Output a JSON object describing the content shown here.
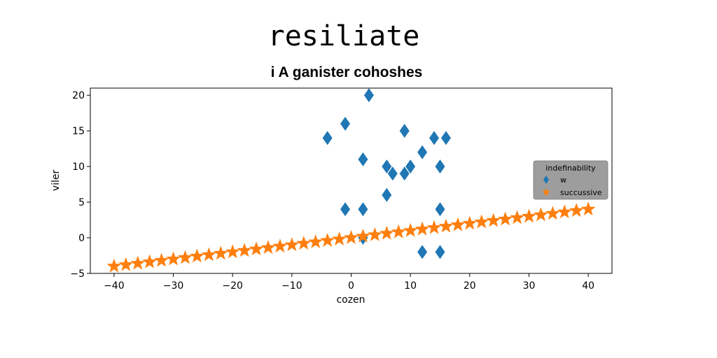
{
  "chart_data": {
    "type": "scatter",
    "suptitle": "resiliate",
    "title": "i A ganister cohoshes",
    "xlabel": "cozen",
    "ylabel": "viler",
    "xlim": [
      -44,
      44
    ],
    "ylim": [
      -5,
      21
    ],
    "xticks": [
      -40,
      -30,
      -20,
      -10,
      0,
      10,
      20,
      30,
      40
    ],
    "yticks": [
      -5,
      0,
      5,
      10,
      15,
      20
    ],
    "grid": false,
    "legend": {
      "title": "indefinability",
      "placement": "center-right"
    },
    "series": [
      {
        "name": "w",
        "marker": "diamond",
        "color": "#1f77b4",
        "points": [
          [
            -4,
            14
          ],
          [
            -1,
            16
          ],
          [
            -1,
            4
          ],
          [
            2,
            11
          ],
          [
            2,
            4
          ],
          [
            2,
            0
          ],
          [
            3,
            20
          ],
          [
            6,
            10
          ],
          [
            6,
            6
          ],
          [
            7,
            9
          ],
          [
            9,
            15
          ],
          [
            9,
            9
          ],
          [
            10,
            10
          ],
          [
            12,
            12
          ],
          [
            12,
            -2
          ],
          [
            14,
            14
          ],
          [
            15,
            10
          ],
          [
            15,
            4
          ],
          [
            15,
            -2
          ],
          [
            16,
            14
          ]
        ]
      },
      {
        "name": "succussive",
        "marker": "star",
        "color": "#ff7f0e",
        "points": [
          [
            -40,
            -4
          ],
          [
            -38,
            -3.8
          ],
          [
            -36,
            -3.6
          ],
          [
            -34,
            -3.4
          ],
          [
            -32,
            -3.2
          ],
          [
            -30,
            -3
          ],
          [
            -28,
            -2.8
          ],
          [
            -26,
            -2.6
          ],
          [
            -24,
            -2.4
          ],
          [
            -22,
            -2.2
          ],
          [
            -20,
            -2
          ],
          [
            -18,
            -1.8
          ],
          [
            -16,
            -1.6
          ],
          [
            -14,
            -1.4
          ],
          [
            -12,
            -1.2
          ],
          [
            -10,
            -1
          ],
          [
            -8,
            -0.8
          ],
          [
            -6,
            -0.6
          ],
          [
            -4,
            -0.4
          ],
          [
            -2,
            -0.2
          ],
          [
            0,
            0
          ],
          [
            2,
            0.2
          ],
          [
            4,
            0.4
          ],
          [
            6,
            0.6
          ],
          [
            8,
            0.8
          ],
          [
            10,
            1
          ],
          [
            12,
            1.2
          ],
          [
            14,
            1.4
          ],
          [
            16,
            1.6
          ],
          [
            18,
            1.8
          ],
          [
            20,
            2
          ],
          [
            22,
            2.2
          ],
          [
            24,
            2.4
          ],
          [
            26,
            2.6
          ],
          [
            28,
            2.8
          ],
          [
            30,
            3
          ],
          [
            32,
            3.2
          ],
          [
            34,
            3.4
          ],
          [
            36,
            3.6
          ],
          [
            38,
            3.8
          ],
          [
            40,
            4
          ]
        ]
      }
    ]
  }
}
